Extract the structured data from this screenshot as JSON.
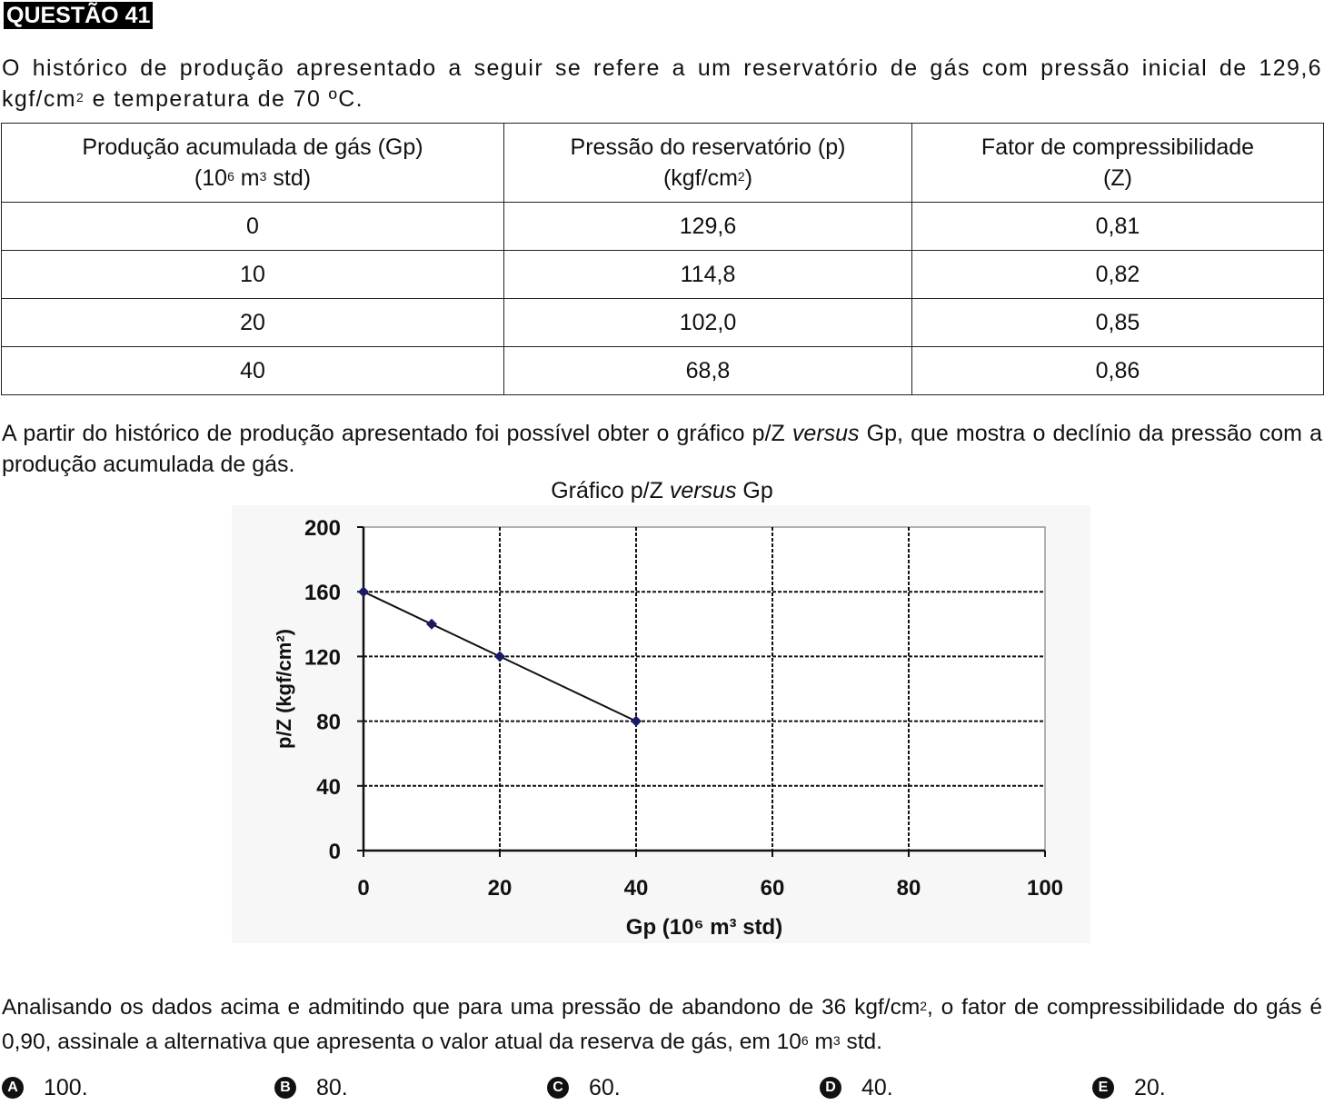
{
  "question": {
    "label": "QUESTÃO 41"
  },
  "intro": {
    "part1": "O histórico de produção apresentado a seguir se refere a um reservatório de gás com pressão inicial de 129,6 kgf/cm",
    "sup": "2",
    "part2": " e temperatura de 70 ºC."
  },
  "table": {
    "headers": [
      {
        "line1": "Produção acumulada de gás (Gp)",
        "line2_a": "(10",
        "line2_sup1": "6",
        "line2_b": " m",
        "line2_sup2": "3",
        "line2_c": " std)"
      },
      {
        "line1": "Pressão do reservatório (p)",
        "line2_a": "(kgf/cm",
        "line2_sup1": "2",
        "line2_b": ")"
      },
      {
        "line1": "Fator de compressibilidade",
        "line2_a": "(Z)"
      }
    ],
    "rows": [
      [
        "0",
        "129,6",
        "0,81"
      ],
      [
        "10",
        "114,8",
        "0,82"
      ],
      [
        "20",
        "102,0",
        "0,85"
      ],
      [
        "40",
        "68,8",
        "0,86"
      ]
    ]
  },
  "mid": {
    "part1": "A partir do histórico de produção apresentado foi possível obter o gráfico p/Z ",
    "italic": "versus",
    "part2": " Gp, que mostra o declínio da pressão com a produção acumulada de gás."
  },
  "chart_title": {
    "part1": "Gráfico p/Z ",
    "italic": "versus",
    "part2": " Gp"
  },
  "chart_data": {
    "type": "line",
    "title": "Gráfico p/Z versus Gp",
    "xlabel": "Gp (10⁶ m³ std)",
    "ylabel": "p/Z (kgf/cm²)",
    "xlim": [
      0,
      100
    ],
    "ylim": [
      0,
      200
    ],
    "xticks": [
      "0",
      "20",
      "40",
      "60",
      "80",
      "100"
    ],
    "yticks": [
      "0",
      "40",
      "80",
      "120",
      "160",
      "200"
    ],
    "x": [
      0,
      10,
      20,
      40
    ],
    "y": [
      160,
      140,
      120,
      80
    ],
    "grid": true,
    "line_color": "#1a1a66"
  },
  "final": {
    "part1": "Analisando os dados acima e admitindo que para uma pressão de abandono de 36 kgf/cm",
    "sup1": "2",
    "part2": ", o fator de compressibilidade do gás é 0,90, assinale a alternativa que apresenta o valor atual da reserva de gás, em 10",
    "sup2": "6",
    "part3": " m",
    "sup3": "3",
    "part4": " std."
  },
  "options": [
    {
      "letter": "A",
      "text": "100."
    },
    {
      "letter": "B",
      "text": "80."
    },
    {
      "letter": "C",
      "text": "60."
    },
    {
      "letter": "D",
      "text": "40."
    },
    {
      "letter": "E",
      "text": "20."
    }
  ]
}
